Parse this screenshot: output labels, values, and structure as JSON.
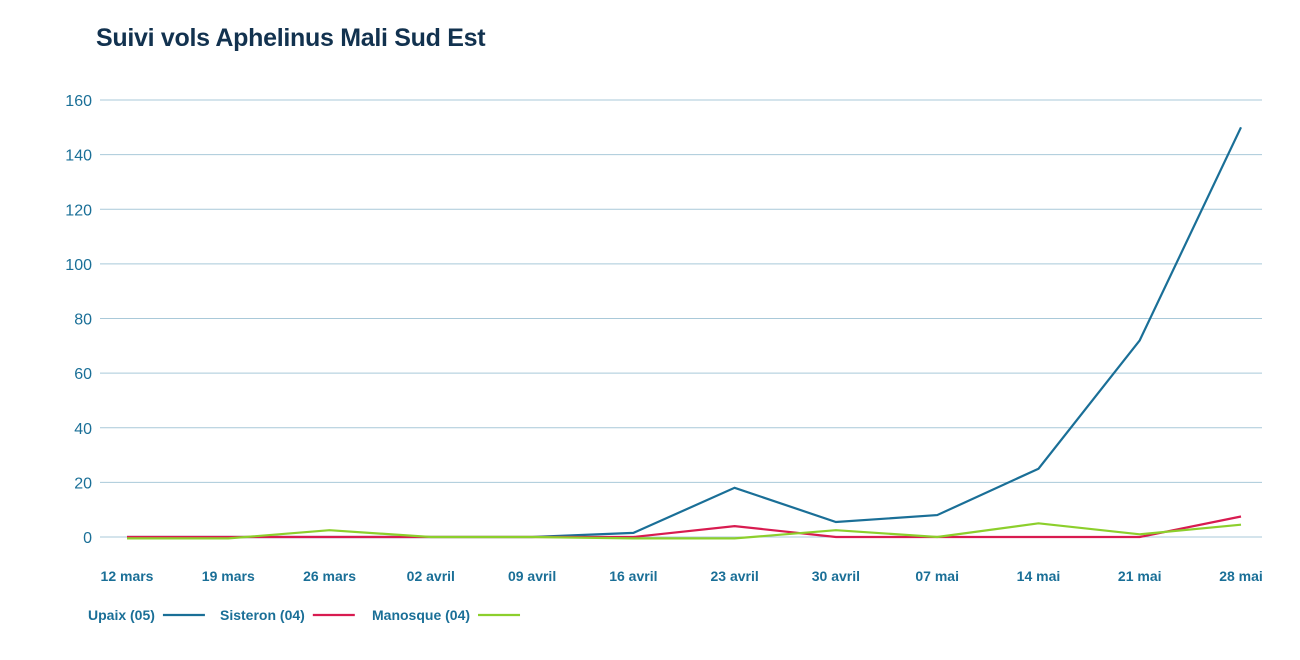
{
  "chart_data": {
    "type": "line",
    "title": "Suivi vols Aphelinus Mali Sud Est",
    "categories": [
      "12 mars",
      "19 mars",
      "26 mars",
      "02 avril",
      "09 avril",
      "16 avril",
      "23 avril",
      "30 avril",
      "07 mai",
      "14 mai",
      "21 mai",
      "28 mai"
    ],
    "ylim": [
      0,
      160
    ],
    "yticks": [
      0,
      20,
      40,
      60,
      80,
      100,
      120,
      140,
      160
    ],
    "grid": true,
    "legend_position": "bottom-left",
    "series": [
      {
        "name": "Upaix (05)",
        "color": "#1a6f97",
        "values": [
          0,
          0,
          0,
          0,
          0,
          1.5,
          18,
          5.5,
          8,
          25,
          72,
          150
        ]
      },
      {
        "name": "Sisteron (04)",
        "color": "#d81b50",
        "values": [
          0,
          0,
          0,
          0,
          0,
          0,
          4,
          0,
          0,
          0,
          0,
          7.5
        ]
      },
      {
        "name": "Manosque (04)",
        "color": "#8ccf2c",
        "values": [
          -0.5,
          -0.5,
          2.5,
          0,
          0,
          -0.5,
          -0.5,
          2.5,
          0,
          5,
          1,
          4.5
        ]
      }
    ]
  }
}
